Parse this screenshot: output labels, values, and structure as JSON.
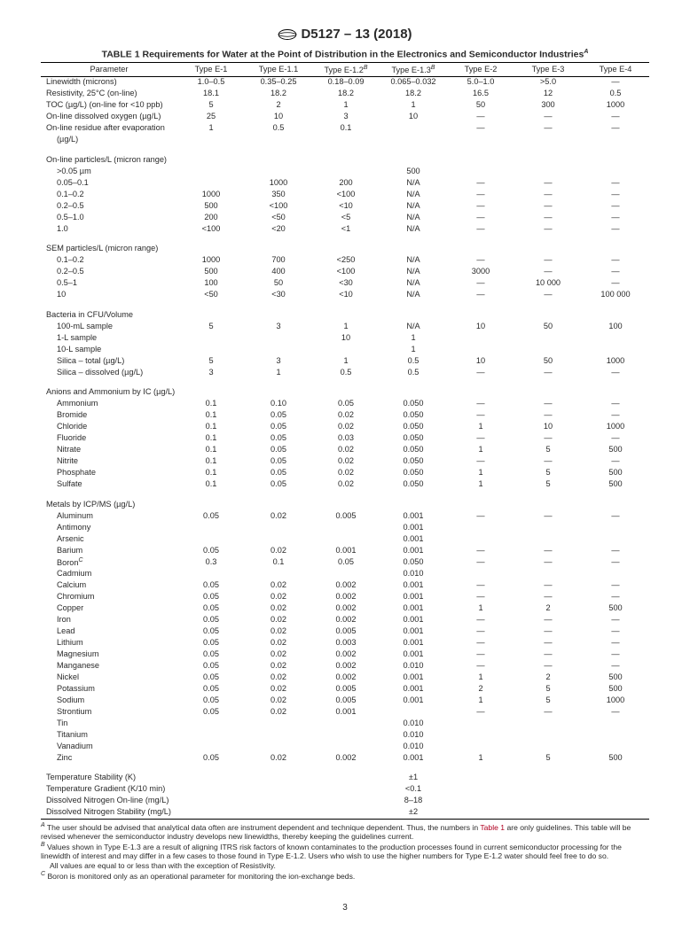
{
  "header": "D5127 – 13 (2018)",
  "caption": "TABLE 1 Requirements for Water at the Point of Distribution in the Electronics and Semiconductor Industries",
  "columns": [
    "Parameter",
    "Type E-1",
    "Type E-1.1",
    "Type E-1.2",
    "Type E-1.3",
    "Type E-2",
    "Type E-3",
    "Type E-4"
  ],
  "sup12": "B",
  "sup13": "B",
  "supCap": "A",
  "rows": [
    {
      "t": "row",
      "p": "Linewidth (microns)",
      "i": 0,
      "v": [
        "1.0–0.5",
        "0.35–0.25",
        "0.18–0.09",
        "0.065–0.032",
        "5.0–1.0",
        ">5.0",
        "—"
      ]
    },
    {
      "t": "row",
      "p": "Resistivity, 25°C (on-line)",
      "i": 0,
      "v": [
        "18.1",
        "18.2",
        "18.2",
        "18.2",
        "16.5",
        "12",
        "0.5"
      ]
    },
    {
      "t": "row",
      "p": "TOC (µg/L) (on-line for <10 ppb)",
      "i": 0,
      "v": [
        "5",
        "2",
        "1",
        "1",
        "50",
        "300",
        "1000"
      ]
    },
    {
      "t": "row",
      "p": "On-line dissolved oxygen (µg/L)",
      "i": 0,
      "v": [
        "25",
        "10",
        "3",
        "10",
        "—",
        "—",
        "—"
      ]
    },
    {
      "t": "row",
      "p": "On-line residue after evaporation",
      "i": 0,
      "v": [
        "1",
        "0.5",
        "0.1",
        "",
        "—",
        "—",
        "—"
      ]
    },
    {
      "t": "row",
      "p": "(µg/L)",
      "i": 1,
      "v": [
        "",
        "",
        "",
        "",
        "",
        "",
        ""
      ]
    },
    {
      "t": "section",
      "p": "On-line particles/L (micron range)",
      "i": 0,
      "v": [
        "",
        "",
        "",
        "",
        "",
        "",
        ""
      ]
    },
    {
      "t": "row",
      "p": ">0.05 µm",
      "i": 1,
      "v": [
        "",
        "",
        "",
        "500",
        "",
        "",
        ""
      ]
    },
    {
      "t": "row",
      "p": "0.05–0.1",
      "i": 1,
      "v": [
        "",
        "1000",
        "200",
        "N/A",
        "—",
        "—",
        "—"
      ]
    },
    {
      "t": "row",
      "p": "0.1–0.2",
      "i": 1,
      "v": [
        "1000",
        "350",
        "<100",
        "N/A",
        "—",
        "—",
        "—"
      ]
    },
    {
      "t": "row",
      "p": "0.2–0.5",
      "i": 1,
      "v": [
        "500",
        "<100",
        "<10",
        "N/A",
        "—",
        "—",
        "—"
      ]
    },
    {
      "t": "row",
      "p": "0.5–1.0",
      "i": 1,
      "v": [
        "200",
        "<50",
        "<5",
        "N/A",
        "—",
        "—",
        "—"
      ]
    },
    {
      "t": "row",
      "p": "1.0",
      "i": 1,
      "v": [
        "<100",
        "<20",
        "<1",
        "N/A",
        "—",
        "—",
        "—"
      ]
    },
    {
      "t": "section",
      "p": "SEM particles/L (micron range)",
      "i": 0,
      "v": [
        "",
        "",
        "",
        "",
        "",
        "",
        ""
      ]
    },
    {
      "t": "row",
      "p": "0.1–0.2",
      "i": 1,
      "v": [
        "1000",
        "700",
        "<250",
        "N/A",
        "—",
        "—",
        "—"
      ]
    },
    {
      "t": "row",
      "p": "0.2–0.5",
      "i": 1,
      "v": [
        "500",
        "400",
        "<100",
        "N/A",
        "3000",
        "—",
        "—"
      ]
    },
    {
      "t": "row",
      "p": "0.5–1",
      "i": 1,
      "v": [
        "100",
        "50",
        "<30",
        "N/A",
        "—",
        "10 000",
        "—"
      ]
    },
    {
      "t": "row",
      "p": "10",
      "i": 1,
      "v": [
        "<50",
        "<30",
        "<10",
        "N/A",
        "—",
        "—",
        "100 000"
      ]
    },
    {
      "t": "section",
      "p": "Bacteria in CFU/Volume",
      "i": 0,
      "v": [
        "",
        "",
        "",
        "",
        "",
        "",
        ""
      ]
    },
    {
      "t": "row",
      "p": "100-mL sample",
      "i": 1,
      "v": [
        "5",
        "3",
        "1",
        "N/A",
        "10",
        "50",
        "100"
      ]
    },
    {
      "t": "row",
      "p": "1-L sample",
      "i": 1,
      "v": [
        "",
        "",
        "10",
        "1",
        "",
        "",
        ""
      ]
    },
    {
      "t": "row",
      "p": "10-L sample",
      "i": 1,
      "v": [
        "",
        "",
        "",
        "1",
        "",
        "",
        ""
      ]
    },
    {
      "t": "row",
      "p": "Silica – total (µg/L)",
      "i": 1,
      "v": [
        "5",
        "3",
        "1",
        "0.5",
        "10",
        "50",
        "1000"
      ]
    },
    {
      "t": "row",
      "p": "Silica – dissolved (µg/L)",
      "i": 1,
      "v": [
        "3",
        "1",
        "0.5",
        "0.5",
        "—",
        "—",
        "—"
      ]
    },
    {
      "t": "section",
      "p": "Anions and Ammonium by IC (µg/L)",
      "i": 0,
      "v": [
        "",
        "",
        "",
        "",
        "",
        "",
        ""
      ]
    },
    {
      "t": "row",
      "p": "Ammonium",
      "i": 1,
      "v": [
        "0.1",
        "0.10",
        "0.05",
        "0.050",
        "—",
        "—",
        "—"
      ]
    },
    {
      "t": "row",
      "p": "Bromide",
      "i": 1,
      "v": [
        "0.1",
        "0.05",
        "0.02",
        "0.050",
        "—",
        "—",
        "—"
      ]
    },
    {
      "t": "row",
      "p": "Chloride",
      "i": 1,
      "v": [
        "0.1",
        "0.05",
        "0.02",
        "0.050",
        "1",
        "10",
        "1000"
      ]
    },
    {
      "t": "row",
      "p": "Fluoride",
      "i": 1,
      "v": [
        "0.1",
        "0.05",
        "0.03",
        "0.050",
        "—",
        "—",
        "—"
      ]
    },
    {
      "t": "row",
      "p": "Nitrate",
      "i": 1,
      "v": [
        "0.1",
        "0.05",
        "0.02",
        "0.050",
        "1",
        "5",
        "500"
      ]
    },
    {
      "t": "row",
      "p": "Nitrite",
      "i": 1,
      "v": [
        "0.1",
        "0.05",
        "0.02",
        "0.050",
        "—",
        "—",
        "—"
      ]
    },
    {
      "t": "row",
      "p": "Phosphate",
      "i": 1,
      "v": [
        "0.1",
        "0.05",
        "0.02",
        "0.050",
        "1",
        "5",
        "500"
      ]
    },
    {
      "t": "row",
      "p": "Sulfate",
      "i": 1,
      "v": [
        "0.1",
        "0.05",
        "0.02",
        "0.050",
        "1",
        "5",
        "500"
      ]
    },
    {
      "t": "section",
      "p": "Metals by ICP/MS (µg/L)",
      "i": 0,
      "v": [
        "",
        "",
        "",
        "",
        "",
        "",
        ""
      ]
    },
    {
      "t": "row",
      "p": "Aluminum",
      "i": 1,
      "v": [
        "0.05",
        "0.02",
        "0.005",
        "0.001",
        "—",
        "—",
        "—"
      ]
    },
    {
      "t": "row",
      "p": "Antimony",
      "i": 1,
      "v": [
        "",
        "",
        "",
        "0.001",
        "",
        "",
        ""
      ]
    },
    {
      "t": "row",
      "p": "Arsenic",
      "i": 1,
      "v": [
        "",
        "",
        "",
        "0.001",
        "",
        "",
        ""
      ]
    },
    {
      "t": "row",
      "p": "Barium",
      "i": 1,
      "v": [
        "0.05",
        "0.02",
        "0.001",
        "0.001",
        "—",
        "—",
        "—"
      ]
    },
    {
      "t": "row",
      "p": "Boron",
      "sup": "C",
      "i": 1,
      "v": [
        "0.3",
        "0.1",
        "0.05",
        "0.050",
        "—",
        "—",
        "—"
      ]
    },
    {
      "t": "row",
      "p": "Cadmium",
      "i": 1,
      "v": [
        "",
        "",
        "",
        "0.010",
        "",
        "",
        ""
      ]
    },
    {
      "t": "row",
      "p": "Calcium",
      "i": 1,
      "v": [
        "0.05",
        "0.02",
        "0.002",
        "0.001",
        "—",
        "—",
        "—"
      ]
    },
    {
      "t": "row",
      "p": "Chromium",
      "i": 1,
      "v": [
        "0.05",
        "0.02",
        "0.002",
        "0.001",
        "—",
        "—",
        "—"
      ]
    },
    {
      "t": "row",
      "p": "Copper",
      "i": 1,
      "v": [
        "0.05",
        "0.02",
        "0.002",
        "0.001",
        "1",
        "2",
        "500"
      ]
    },
    {
      "t": "row",
      "p": "Iron",
      "i": 1,
      "v": [
        "0.05",
        "0.02",
        "0.002",
        "0.001",
        "—",
        "—",
        "—"
      ]
    },
    {
      "t": "row",
      "p": "Lead",
      "i": 1,
      "v": [
        "0.05",
        "0.02",
        "0.005",
        "0.001",
        "—",
        "—",
        "—"
      ]
    },
    {
      "t": "row",
      "p": "Lithium",
      "i": 1,
      "v": [
        "0.05",
        "0.02",
        "0.003",
        "0.001",
        "—",
        "—",
        "—"
      ]
    },
    {
      "t": "row",
      "p": "Magnesium",
      "i": 1,
      "v": [
        "0.05",
        "0.02",
        "0.002",
        "0.001",
        "—",
        "—",
        "—"
      ]
    },
    {
      "t": "row",
      "p": "Manganese",
      "i": 1,
      "v": [
        "0.05",
        "0.02",
        "0.002",
        "0.010",
        "—",
        "—",
        "—"
      ]
    },
    {
      "t": "row",
      "p": "Nickel",
      "i": 1,
      "v": [
        "0.05",
        "0.02",
        "0.002",
        "0.001",
        "1",
        "2",
        "500"
      ]
    },
    {
      "t": "row",
      "p": "Potassium",
      "i": 1,
      "v": [
        "0.05",
        "0.02",
        "0.005",
        "0.001",
        "2",
        "5",
        "500"
      ]
    },
    {
      "t": "row",
      "p": "Sodium",
      "i": 1,
      "v": [
        "0.05",
        "0.02",
        "0.005",
        "0.001",
        "1",
        "5",
        "1000"
      ]
    },
    {
      "t": "row",
      "p": "Strontium",
      "i": 1,
      "v": [
        "0.05",
        "0.02",
        "0.001",
        "",
        "—",
        "—",
        "—"
      ]
    },
    {
      "t": "row",
      "p": "Tin",
      "i": 1,
      "v": [
        "",
        "",
        "",
        "0.010",
        "",
        "",
        ""
      ]
    },
    {
      "t": "row",
      "p": "Titanium",
      "i": 1,
      "v": [
        "",
        "",
        "",
        "0.010",
        "",
        "",
        ""
      ]
    },
    {
      "t": "row",
      "p": "Vanadium",
      "i": 1,
      "v": [
        "",
        "",
        "",
        "0.010",
        "",
        "",
        ""
      ]
    },
    {
      "t": "row",
      "p": "Zinc",
      "i": 1,
      "v": [
        "0.05",
        "0.02",
        "0.002",
        "0.001",
        "1",
        "5",
        "500"
      ]
    },
    {
      "t": "section",
      "p": "Temperature Stability (K)",
      "i": 0,
      "v": [
        "",
        "",
        "",
        "±1",
        "",
        "",
        ""
      ]
    },
    {
      "t": "row",
      "p": "Temperature Gradient (K/10 min)",
      "i": 0,
      "v": [
        "",
        "",
        "",
        "<0.1",
        "",
        "",
        ""
      ]
    },
    {
      "t": "row",
      "p": "Dissolved Nitrogen On-line (mg/L)",
      "i": 0,
      "v": [
        "",
        "",
        "",
        "8–18",
        "",
        "",
        ""
      ]
    },
    {
      "t": "row",
      "p": "Dissolved Nitrogen Stability (mg/L)",
      "i": 0,
      "v": [
        "",
        "",
        "",
        "±2",
        "",
        "",
        ""
      ],
      "rule": true
    }
  ],
  "footnotes": {
    "A_pre": " The user should be advised that analytical data often are instrument dependent and technique dependent. Thus, the numbers in ",
    "A_link": "Table 1",
    "A_post": " are only guidelines. This table will be revised whenever the semiconductor industry develops new linewidths, thereby keeping the guidelines current.",
    "B": " Values shown in Type E-1.3 are a result of aligning ITRS risk factors of known contaminates to the production processes found in current semiconductor processing for the linewidth of interest and may differ in a few cases to those found in Type E-1.2. Users who wish to use the higher numbers for Type E-1.2 water should feel free to do so.",
    "note": "All values are equal to or less than with the exception of Resistivity.",
    "C": " Boron is monitored only as an operational parameter for monitoring the ion-exchange beds."
  },
  "pagenum": "3"
}
